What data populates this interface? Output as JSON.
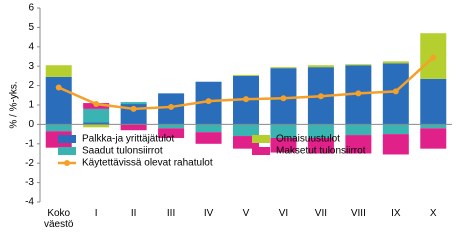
{
  "chart_data": {
    "type": "stacked-bar-line",
    "y_label": "% / %-yks.",
    "categories": [
      "Koko väestö",
      "I",
      "II",
      "III",
      "IV",
      "V",
      "VI",
      "VII",
      "VIII",
      "IX",
      "X"
    ],
    "ylim": [
      -4,
      6
    ],
    "yticks": [
      -4,
      -3,
      -2,
      -1,
      0,
      1,
      2,
      3,
      4,
      5,
      6
    ],
    "grid": false,
    "series": [
      {
        "name": "Palkka-ja yrittäjätulot",
        "color": "#2a6ebb",
        "kind": "bar",
        "values": [
          2.45,
          0.1,
          1.05,
          1.6,
          2.2,
          2.5,
          2.9,
          2.95,
          3.05,
          3.15,
          2.35
        ]
      },
      {
        "name": "Omaisuustulot",
        "color": "#b5cf2f",
        "kind": "bar",
        "values": [
          0.6,
          -0.15,
          0,
          0,
          0,
          0.05,
          0.05,
          0.1,
          0.05,
          0.1,
          2.35
        ]
      },
      {
        "name": "Saadut tulonsiirrot",
        "color": "#3ab3b3",
        "kind": "bar",
        "values": [
          -0.35,
          0.7,
          0.1,
          -0.2,
          -0.4,
          -0.6,
          -0.7,
          -0.7,
          -0.55,
          -0.5,
          -0.2
        ]
      },
      {
        "name": "Maksetut tulonsiirrot",
        "color": "#e0218a",
        "kind": "bar",
        "values": [
          -0.85,
          0.3,
          -0.3,
          -0.5,
          -0.6,
          -0.65,
          -0.75,
          -0.8,
          -0.95,
          -1.05,
          -1.05
        ]
      },
      {
        "name": "Käytettävissä olevat rahatulot",
        "color": "#f5a02a",
        "kind": "line",
        "values": [
          1.9,
          1.05,
          0.8,
          0.9,
          1.2,
          1.3,
          1.35,
          1.45,
          1.6,
          1.7,
          3.45
        ]
      }
    ]
  }
}
